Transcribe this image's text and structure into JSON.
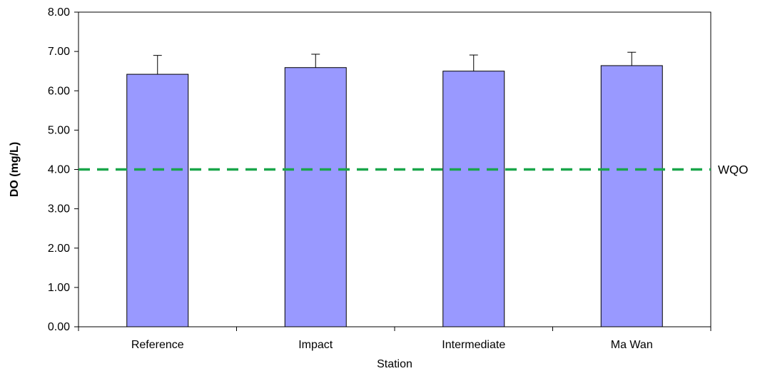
{
  "chart_data": {
    "type": "bar",
    "title": "",
    "xlabel": "Station",
    "ylabel": "DO (mg/L)",
    "categories": [
      "Reference",
      "Impact",
      "Intermediate",
      "Ma Wan"
    ],
    "values": [
      6.42,
      6.59,
      6.5,
      6.64
    ],
    "error_upper": [
      0.48,
      0.34,
      0.41,
      0.34
    ],
    "ylim": [
      0,
      8
    ],
    "yticks": [
      "0.00",
      "1.00",
      "2.00",
      "3.00",
      "4.00",
      "5.00",
      "6.00",
      "7.00",
      "8.00"
    ],
    "ytick_values": [
      0,
      1,
      2,
      3,
      4,
      5,
      6,
      7,
      8
    ],
    "grid": false,
    "legend": "none",
    "reference_line": {
      "value": 4.0,
      "label": "WQO",
      "style": "dashed",
      "color": "#1aa64a"
    },
    "colors": {
      "bar_fill": "#9999ff",
      "bar_stroke": "#000000",
      "axis": "#000000"
    }
  }
}
